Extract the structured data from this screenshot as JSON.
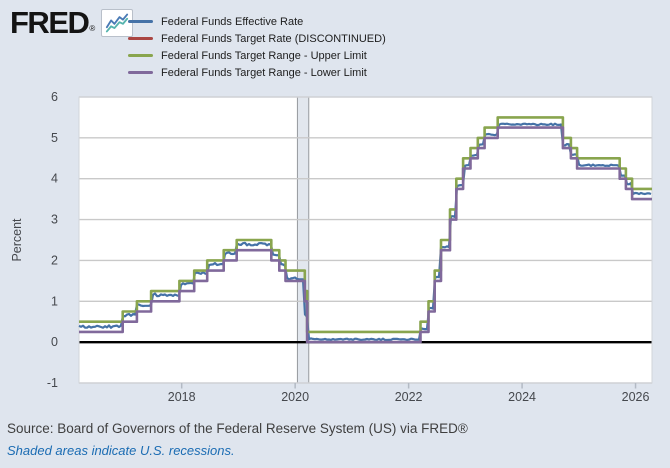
{
  "brand": {
    "logo_text": "FRED",
    "registered_mark": "®",
    "logo_icon": "line-chart-sparkline-icon"
  },
  "legend": {
    "items": [
      {
        "label": "Federal Funds Effective Rate",
        "color": "#4572a7"
      },
      {
        "label": "Federal Funds Target Rate (DISCONTINUED)",
        "color": "#aa4643"
      },
      {
        "label": "Federal Funds Target Range - Upper Limit",
        "color": "#89a54e"
      },
      {
        "label": "Federal Funds Target Range - Lower Limit",
        "color": "#80699b"
      }
    ]
  },
  "chart_data": {
    "type": "line",
    "step": true,
    "title": "",
    "xlabel": "",
    "ylabel": "Percent",
    "ylim": [
      -1,
      6
    ],
    "yticks": [
      -1,
      0,
      1,
      2,
      3,
      4,
      5,
      6
    ],
    "xlim": [
      2016.19,
      2026.29
    ],
    "xticks": [
      2018,
      2020,
      2022,
      2024,
      2026
    ],
    "grid": true,
    "legend_position": "top-left",
    "plot_bg": "#ffffff",
    "grid_color": "#c9c9c9",
    "border_color": "#d2d5da",
    "zero_line_color": "#000000",
    "axis_text_color": "#45484d",
    "tick_color": "#b3bac4",
    "recession_bands": [
      {
        "start": 2020.04,
        "end": 2020.24,
        "fill": "#e2e7ee",
        "edge": "#96999e"
      }
    ],
    "series": [
      {
        "name": "Federal Funds Effective Rate",
        "color": "#4572a7",
        "width": 2.2,
        "jitter": {
          "early": 0.035,
          "late": 0.018,
          "split": 2020.3
        },
        "points": [
          [
            2016.19,
            0.38
          ],
          [
            2016.96,
            0.66
          ],
          [
            2017.21,
            0.91
          ],
          [
            2017.46,
            1.16
          ],
          [
            2017.96,
            1.42
          ],
          [
            2018.22,
            1.68
          ],
          [
            2018.45,
            1.91
          ],
          [
            2018.74,
            2.18
          ],
          [
            2018.97,
            2.4
          ],
          [
            2019.58,
            2.13
          ],
          [
            2019.72,
            1.9
          ],
          [
            2019.83,
            1.55
          ],
          [
            2020.17,
            0.65
          ],
          [
            2020.22,
            0.07
          ],
          [
            2022.21,
            0.33
          ],
          [
            2022.35,
            0.83
          ],
          [
            2022.46,
            1.58
          ],
          [
            2022.57,
            2.33
          ],
          [
            2022.73,
            3.08
          ],
          [
            2022.84,
            3.83
          ],
          [
            2022.96,
            4.33
          ],
          [
            2023.09,
            4.57
          ],
          [
            2023.22,
            4.83
          ],
          [
            2023.34,
            5.08
          ],
          [
            2023.57,
            5.33
          ],
          [
            2024.72,
            4.83
          ],
          [
            2024.86,
            4.58
          ],
          [
            2024.97,
            4.33
          ],
          [
            2025.72,
            4.09
          ],
          [
            2025.83,
            3.88
          ],
          [
            2025.94,
            3.64
          ]
        ]
      },
      {
        "name": "Federal Funds Target Rate (DISCONTINUED)",
        "color": "#aa4643",
        "width": 2.6,
        "points": []
      },
      {
        "name": "Federal Funds Target Range - Upper Limit",
        "color": "#89a54e",
        "width": 2.6,
        "points": [
          [
            2016.19,
            0.5
          ],
          [
            2016.96,
            0.75
          ],
          [
            2017.21,
            1.0
          ],
          [
            2017.46,
            1.25
          ],
          [
            2017.96,
            1.5
          ],
          [
            2018.22,
            1.75
          ],
          [
            2018.45,
            2.0
          ],
          [
            2018.74,
            2.25
          ],
          [
            2018.97,
            2.5
          ],
          [
            2019.58,
            2.25
          ],
          [
            2019.72,
            2.0
          ],
          [
            2019.83,
            1.75
          ],
          [
            2020.17,
            1.25
          ],
          [
            2020.21,
            0.25
          ],
          [
            2022.21,
            0.5
          ],
          [
            2022.35,
            1.0
          ],
          [
            2022.46,
            1.75
          ],
          [
            2022.57,
            2.5
          ],
          [
            2022.73,
            3.25
          ],
          [
            2022.84,
            4.0
          ],
          [
            2022.96,
            4.5
          ],
          [
            2023.09,
            4.75
          ],
          [
            2023.22,
            5.0
          ],
          [
            2023.34,
            5.25
          ],
          [
            2023.57,
            5.5
          ],
          [
            2024.72,
            5.0
          ],
          [
            2024.86,
            4.75
          ],
          [
            2024.97,
            4.5
          ],
          [
            2025.72,
            4.25
          ],
          [
            2025.83,
            4.0
          ],
          [
            2025.94,
            3.75
          ]
        ]
      },
      {
        "name": "Federal Funds Target Range - Lower Limit",
        "color": "#80699b",
        "width": 2.6,
        "points": [
          [
            2016.19,
            0.25
          ],
          [
            2016.96,
            0.5
          ],
          [
            2017.21,
            0.75
          ],
          [
            2017.46,
            1.0
          ],
          [
            2017.96,
            1.25
          ],
          [
            2018.22,
            1.5
          ],
          [
            2018.45,
            1.75
          ],
          [
            2018.74,
            2.0
          ],
          [
            2018.97,
            2.25
          ],
          [
            2019.58,
            2.0
          ],
          [
            2019.72,
            1.75
          ],
          [
            2019.83,
            1.5
          ],
          [
            2020.17,
            1.0
          ],
          [
            2020.21,
            0.0
          ],
          [
            2022.21,
            0.25
          ],
          [
            2022.35,
            0.75
          ],
          [
            2022.46,
            1.5
          ],
          [
            2022.57,
            2.25
          ],
          [
            2022.73,
            3.0
          ],
          [
            2022.84,
            3.75
          ],
          [
            2022.96,
            4.25
          ],
          [
            2023.09,
            4.5
          ],
          [
            2023.22,
            4.75
          ],
          [
            2023.34,
            5.0
          ],
          [
            2023.57,
            5.25
          ],
          [
            2024.72,
            4.75
          ],
          [
            2024.86,
            4.5
          ],
          [
            2024.97,
            4.25
          ],
          [
            2025.72,
            4.0
          ],
          [
            2025.83,
            3.75
          ],
          [
            2025.94,
            3.5
          ]
        ]
      }
    ]
  },
  "footer": {
    "source": "Source: Board of Governors of the Federal Reserve System (US) via FRED®",
    "note": "Shaded areas indicate U.S. recessions."
  }
}
